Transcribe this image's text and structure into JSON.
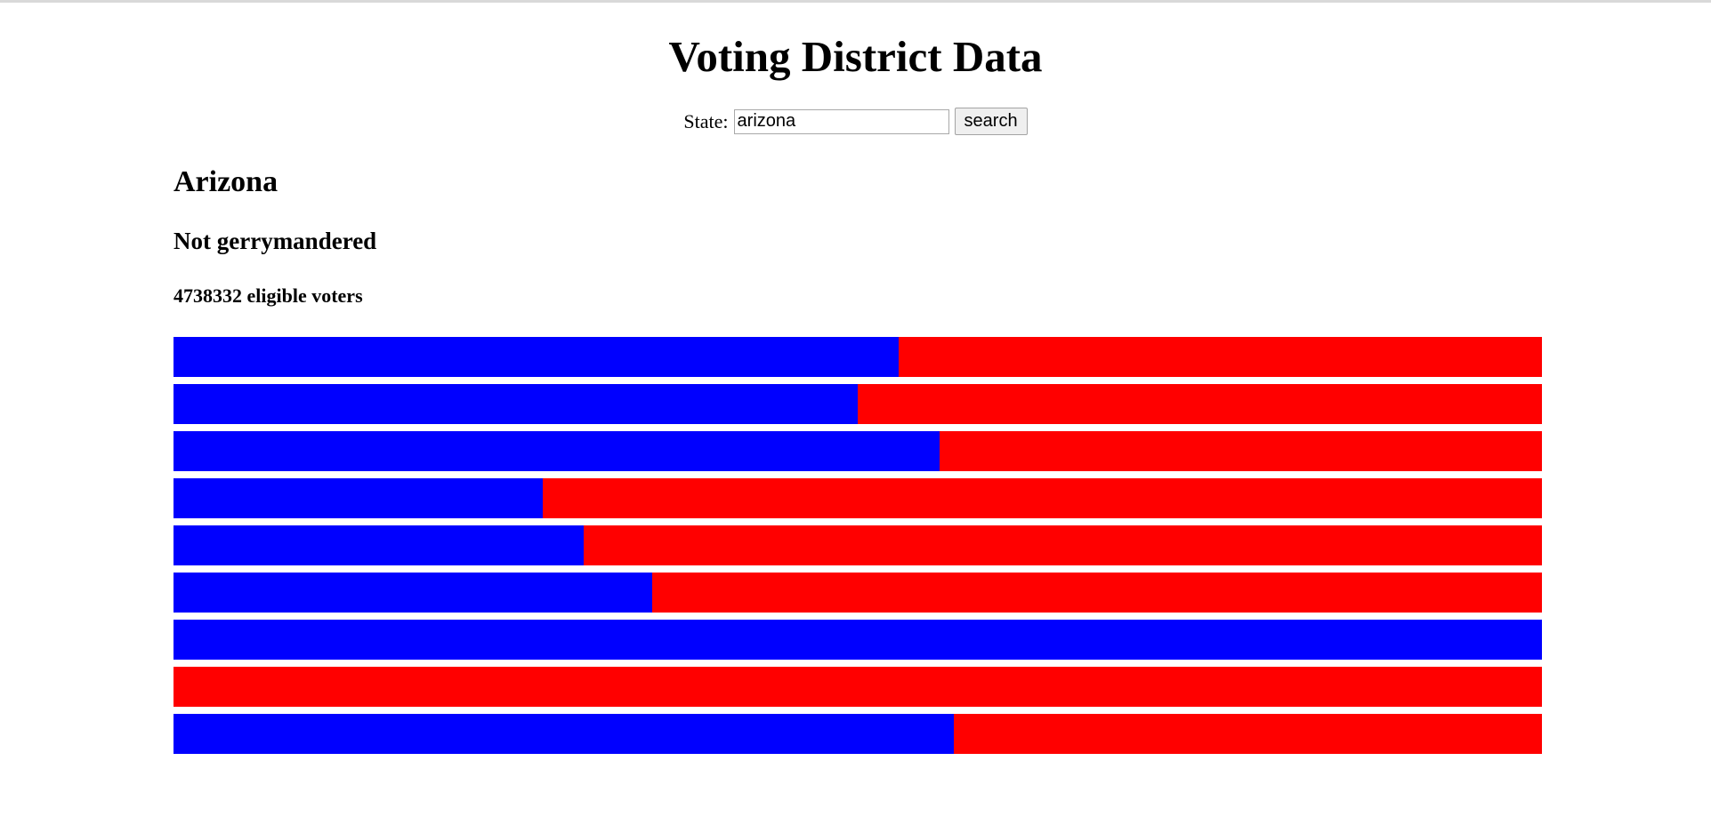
{
  "page": {
    "title": "Voting District Data"
  },
  "search": {
    "label": "State:",
    "value": "arizona",
    "button_label": "search"
  },
  "result": {
    "state_name": "Arizona",
    "status": "Not gerrymandered",
    "voters": "4738332 eligible voters"
  },
  "colors": {
    "democrat": "#0000ff",
    "republican": "#ff0000"
  },
  "districts": [
    {
      "blue_share": 0.53
    },
    {
      "blue_share": 0.5
    },
    {
      "blue_share": 0.56
    },
    {
      "blue_share": 0.27
    },
    {
      "blue_share": 0.3
    },
    {
      "blue_share": 0.35
    },
    {
      "blue_share": 1.0
    },
    {
      "blue_share": 0.0
    },
    {
      "blue_share": 0.57
    }
  ]
}
